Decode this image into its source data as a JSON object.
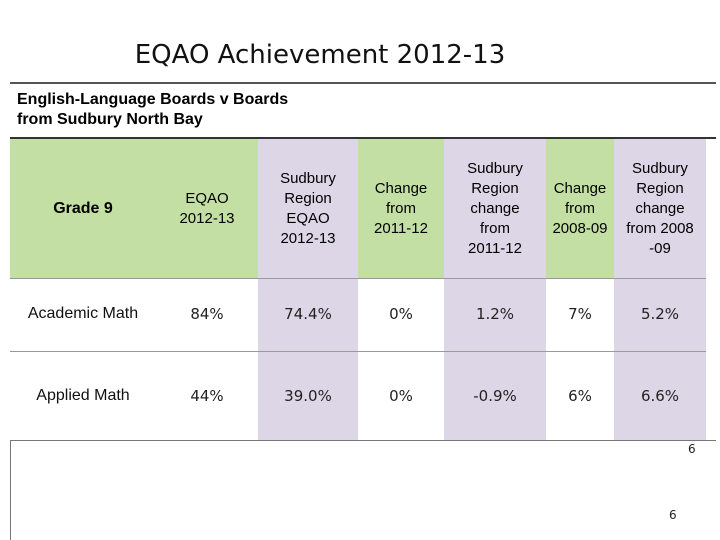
{
  "title": "EQAO Achievement 2012-13",
  "subtitle": {
    "line1": "English-Language Boards v Boards",
    "line2": "from Sudbury North Bay"
  },
  "table": {
    "headers": {
      "c0": "Grade 9",
      "c1": "EQAO\n2012-13",
      "c2": "Sudbury\nRegion\nEQAO\n2012-13",
      "c3": "Change\nfrom\n2011-12",
      "c4": "Sudbury\nRegion\nchange\nfrom\n2011-12",
      "c5": "Change\nfrom\n2008-09",
      "c6": "Sudbury\nRegion\nchange\nfrom 2008\n-09"
    },
    "rows": [
      {
        "label": "Academic Math",
        "values": [
          "84%",
          "74.4%",
          "0%",
          "1.2%",
          "7%",
          "5.2%"
        ]
      },
      {
        "label": "Applied Math",
        "values": [
          "44%",
          "39.0%",
          "0%",
          "-0.9%",
          "6%",
          "6.6%"
        ]
      }
    ]
  },
  "page_number": "6",
  "colors": {
    "header_green": "#c3dfa4",
    "header_purple": "#dcd6e7",
    "column_purple": "#ddd6e7"
  }
}
